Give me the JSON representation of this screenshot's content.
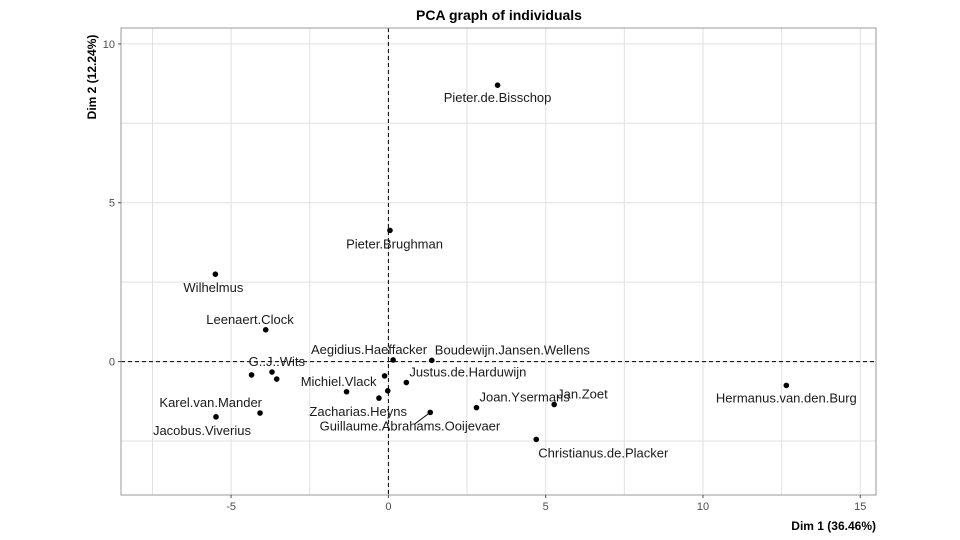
{
  "chart_data": {
    "type": "scatter",
    "title": "PCA graph of individuals",
    "xlabel": "Dim 1 (36.46%)",
    "ylabel": "Dim 2 (12.24%)",
    "xlim": [
      -8.5,
      15.5
    ],
    "ylim": [
      -4.2,
      10.5
    ],
    "xticks": [
      -5,
      0,
      5,
      10,
      15
    ],
    "yticks": [
      0,
      5,
      10
    ],
    "grid": true,
    "reference_lines": {
      "x": 0,
      "y": 0,
      "style": "dashed"
    },
    "points": [
      {
        "label": "Pieter.de.Bisschop",
        "x": 3.47,
        "y": 8.7,
        "label_pos": "below"
      },
      {
        "label": "Pieter.Brughman",
        "x": 0.05,
        "y": 4.13,
        "label_pos": "below-left"
      },
      {
        "label": "Wilhelmus",
        "x": -5.5,
        "y": 2.75,
        "label_pos": "below-left"
      },
      {
        "label": "Leenaert.Clock",
        "x": -3.9,
        "y": 1.0,
        "label_pos": "above-left"
      },
      {
        "label": "G..J..Wits",
        "x": -3.7,
        "y": -0.33,
        "label_pos": "above-left"
      },
      {
        "label": "",
        "x": -4.35,
        "y": -0.42
      },
      {
        "label": "",
        "x": -3.55,
        "y": -0.55
      },
      {
        "label": "Aegidius.Haeffacker",
        "x": 0.15,
        "y": 0.05,
        "label_pos": "above-left"
      },
      {
        "label": "Boudewijn.Jansen.Wellens",
        "x": 1.38,
        "y": 0.04,
        "label_pos": "above-right"
      },
      {
        "label": "Michiel.Vlack",
        "x": -1.33,
        "y": -0.95,
        "label_pos": "above-left"
      },
      {
        "label": "",
        "x": -0.12,
        "y": -0.45
      },
      {
        "label": "Justus.de.Harduwijn",
        "x": 0.57,
        "y": -0.66,
        "label_pos": "above-right"
      },
      {
        "label": "",
        "x": -0.02,
        "y": -0.92
      },
      {
        "label": "Zacharias.Heyns",
        "x": -0.3,
        "y": -1.15,
        "label_pos": "below-left"
      },
      {
        "label": "Guillaume.Abrahams.Ooijevaer",
        "x": 1.33,
        "y": -1.6,
        "label_pos": "below-left"
      },
      {
        "label": "Karel.van.Mander",
        "x": -4.08,
        "y": -1.62,
        "label_pos": "above-left"
      },
      {
        "label": "Jacobus.Viverius",
        "x": -5.48,
        "y": -1.74,
        "label_pos": "below-left"
      },
      {
        "label": "Joan.Ysermans",
        "x": 2.8,
        "y": -1.45,
        "label_pos": "above-right"
      },
      {
        "label": "Jan.Zoet",
        "x": 5.27,
        "y": -1.35,
        "label_pos": "above-right"
      },
      {
        "label": "Christianus.de.Placker",
        "x": 4.7,
        "y": -2.45,
        "label_pos": "below-right"
      },
      {
        "label": "Hermanus.van.den.Burg",
        "x": 12.65,
        "y": -0.75,
        "label_pos": "below"
      }
    ]
  }
}
